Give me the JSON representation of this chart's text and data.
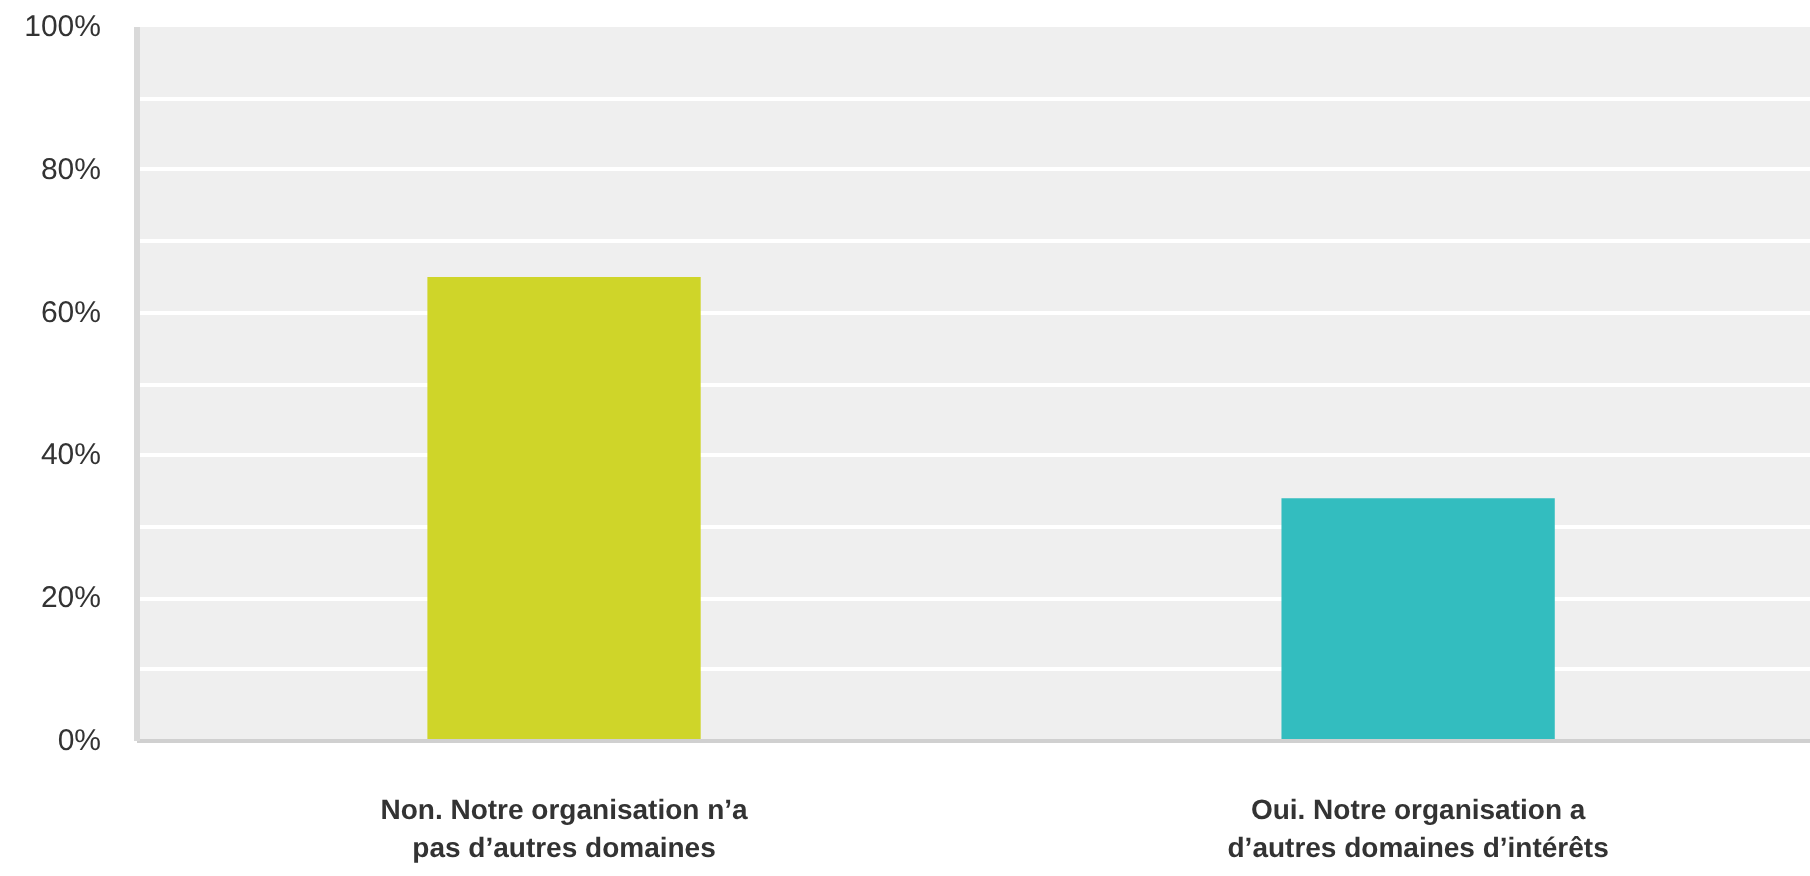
{
  "chart_data": {
    "type": "bar",
    "categories": [
      "Non. Notre organisation n’a pas d’autres domaines",
      "Oui. Notre organisation a d’autres domaines d’intérêts"
    ],
    "values": [
      65,
      34
    ],
    "colors": [
      "#cfd529",
      "#33bdbf"
    ],
    "ylim": [
      0,
      100
    ],
    "yticks": [
      {
        "value": 0,
        "label": "0%"
      },
      {
        "value": 10,
        "label": null
      },
      {
        "value": 20,
        "label": "20%"
      },
      {
        "value": 30,
        "label": null
      },
      {
        "value": 40,
        "label": "40%"
      },
      {
        "value": 50,
        "label": null
      },
      {
        "value": 60,
        "label": "60%"
      },
      {
        "value": 70,
        "label": null
      },
      {
        "value": 80,
        "label": "80%"
      },
      {
        "value": 90,
        "label": null
      },
      {
        "value": 100,
        "label": "100%"
      }
    ],
    "grid": "y"
  }
}
